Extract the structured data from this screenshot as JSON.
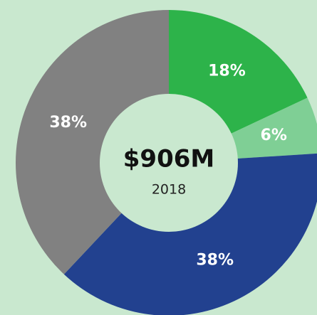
{
  "chart_data": {
    "type": "donut",
    "center_label": "$906M",
    "center_sublabel": "2018",
    "values": [
      18,
      6,
      38,
      38
    ],
    "value_labels": [
      "18%",
      "6%",
      "38%",
      "38%"
    ],
    "colors": [
      "#2db34a",
      "#7fcf95",
      "#22418f",
      "#818181"
    ]
  }
}
